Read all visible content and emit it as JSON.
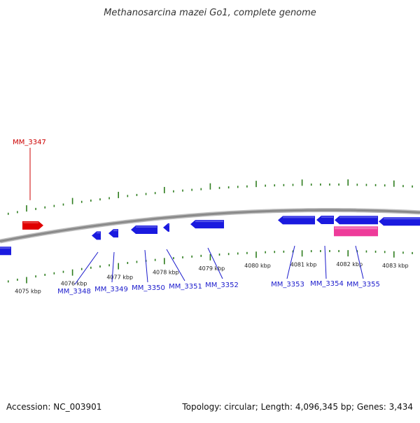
{
  "title": "Methanosarcina mazei Go1, complete genome",
  "footer": {
    "accession": "Accession: NC_003901",
    "stats": "Topology: circular; Length: 4,096,345 bp; Genes: 3,434"
  },
  "colors": {
    "backbone": "#8a8a8a",
    "ticks": "#2e7d1e",
    "forward_gene": "#e00000",
    "reverse_gene": "#1a1adf",
    "other_feature": "#ee3b9a",
    "label_forward": "#cc0000",
    "label_reverse": "#1a1acc"
  },
  "axis": {
    "unit": "kbp",
    "tick_labels": [
      "4075 kbp",
      "4076 kbp",
      "4077 kbp",
      "4078 kbp",
      "4079 kbp",
      "4080 kbp",
      "4081 kbp",
      "4082 kbp",
      "4083 kbp"
    ]
  },
  "features": {
    "forward_genes": [
      {
        "label": "MM_3347"
      }
    ],
    "reverse_genes": [
      {
        "label": ""
      },
      {
        "label": "MM_3348"
      },
      {
        "label": "MM_3349"
      },
      {
        "label": "MM_3350"
      },
      {
        "label": "MM_3351"
      },
      {
        "label": "MM_3352"
      },
      {
        "label": "MM_3353"
      },
      {
        "label": "MM_3354"
      },
      {
        "label": "MM_3355"
      },
      {
        "label": ""
      }
    ],
    "other": [
      {
        "label": ""
      }
    ]
  }
}
